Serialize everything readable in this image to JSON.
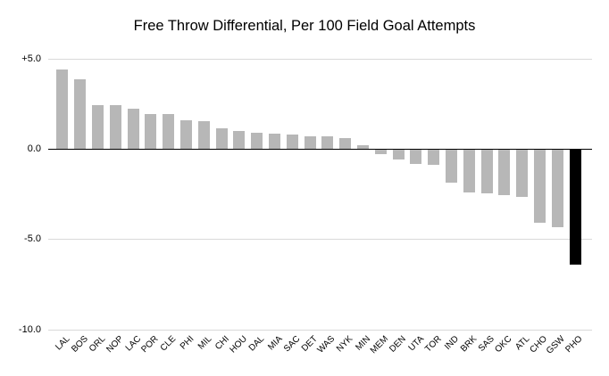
{
  "chart_data": {
    "type": "bar",
    "title": "Free Throw Differential, Per 100 Field Goal Attempts",
    "xlabel": "",
    "ylabel": "",
    "ylim": [
      -10,
      5
    ],
    "grid": "horizontal",
    "legend": "none",
    "bar_color": "#b7b7b7",
    "highlight_category": "PHO",
    "highlight_color": "#000000",
    "gridline_color": "#d9d9d9",
    "zero_line_color": "#000000",
    "y_ticks": [
      {
        "label": "+5.0",
        "value": 5
      },
      {
        "label": "0.0",
        "value": 0
      },
      {
        "label": "-5.0",
        "value": -5
      },
      {
        "label": "-10.0",
        "value": -10
      }
    ],
    "categories": [
      "LAL",
      "BOS",
      "ORL",
      "NOP",
      "LAC",
      "POR",
      "CLE",
      "PHI",
      "MIL",
      "CHI",
      "HOU",
      "DAL",
      "MIA",
      "SAC",
      "DET",
      "WAS",
      "NYK",
      "MIN",
      "MEM",
      "DEN",
      "UTA",
      "TOR",
      "IND",
      "BRK",
      "SAS",
      "OKC",
      "ATL",
      "CHO",
      "GSW",
      "PHO"
    ],
    "values": [
      4.4,
      3.85,
      2.45,
      2.45,
      2.25,
      1.95,
      1.95,
      1.6,
      1.55,
      1.15,
      1.0,
      0.9,
      0.85,
      0.8,
      0.7,
      0.7,
      0.6,
      0.2,
      -0.3,
      -0.6,
      -0.8,
      -0.85,
      -1.85,
      -2.4,
      -2.45,
      -2.55,
      -2.65,
      -4.1,
      -4.35,
      -6.4
    ]
  }
}
